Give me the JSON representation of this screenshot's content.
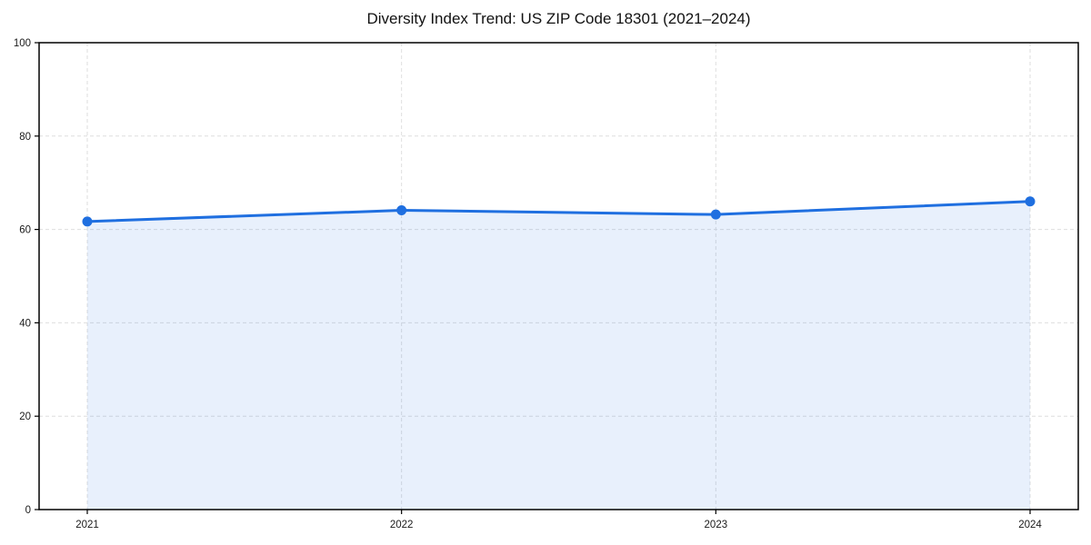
{
  "title": "Diversity Index Trend: US ZIP Code 18301 (2021–2024)",
  "chart_data": {
    "type": "area",
    "title": "Diversity Index Trend: US ZIP Code 18301 (2021–2024)",
    "categories": [
      "2021",
      "2022",
      "2023",
      "2024"
    ],
    "values": [
      61.7,
      64.1,
      63.2,
      66.0
    ],
    "series_name": "Diversity Index",
    "xlabel": "",
    "ylabel": "",
    "ylim": [
      0,
      100
    ],
    "yticks": [
      0,
      20,
      40,
      60,
      80,
      100
    ],
    "grid": "dashed, both axes",
    "legend": "none",
    "line_color": "#1f6fe0",
    "marker_color": "#1f6fe0",
    "fill_color": "rgba(31,111,224,0.10)",
    "grid_color": "#dedede",
    "spine_color": "#000000",
    "tick_label_color": "#1a1a1a"
  }
}
